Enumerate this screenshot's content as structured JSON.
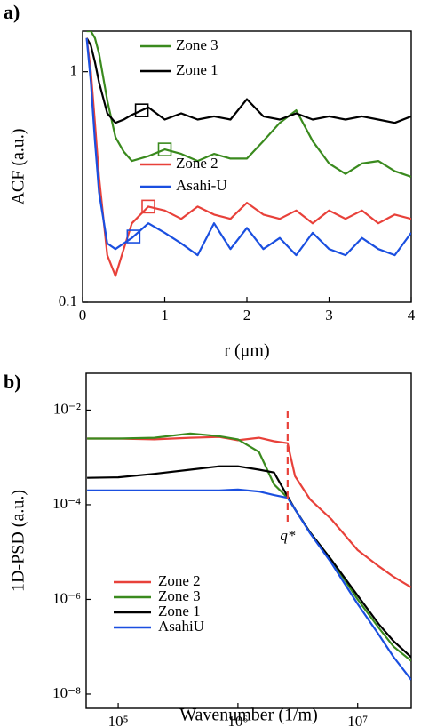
{
  "chart_data": [
    {
      "type": "line",
      "panel_label": "a)",
      "xlabel": "r (μm)",
      "ylabel": "ACF (a.u.)",
      "xlim": [
        0,
        4
      ],
      "xticks": [
        0,
        1,
        2,
        3,
        4
      ],
      "ylim": [
        0.1,
        1.5
      ],
      "yticks": [
        0.1,
        1
      ],
      "ylog": true,
      "x": [
        0.05,
        0.1,
        0.15,
        0.2,
        0.3,
        0.4,
        0.5,
        0.6,
        0.8,
        1.0,
        1.2,
        1.4,
        1.6,
        1.8,
        2.0,
        2.2,
        2.4,
        2.6,
        2.8,
        3.0,
        3.2,
        3.4,
        3.6,
        3.8,
        4.0
      ],
      "series": [
        {
          "name": "Zone 3",
          "color": "#3a8a1e",
          "marker_x": 1.0,
          "values": [
            1.5,
            1.5,
            1.4,
            1.2,
            0.75,
            0.52,
            0.45,
            0.41,
            0.43,
            0.46,
            0.44,
            0.41,
            0.44,
            0.42,
            0.42,
            0.5,
            0.6,
            0.68,
            0.5,
            0.4,
            0.36,
            0.4,
            0.41,
            0.37,
            0.35
          ]
        },
        {
          "name": "Zone 1",
          "color": "#000000",
          "marker_x": 0.72,
          "values": [
            1.4,
            1.3,
            1.1,
            0.9,
            0.66,
            0.6,
            0.62,
            0.65,
            0.7,
            0.62,
            0.66,
            0.62,
            0.64,
            0.62,
            0.76,
            0.64,
            0.62,
            0.66,
            0.62,
            0.64,
            0.62,
            0.64,
            0.62,
            0.6,
            0.64
          ]
        },
        {
          "name": "Zone 2",
          "color": "#e8413a",
          "marker_x": 0.8,
          "values": [
            1.4,
            1.0,
            0.6,
            0.35,
            0.16,
            0.13,
            0.17,
            0.22,
            0.26,
            0.25,
            0.23,
            0.26,
            0.24,
            0.23,
            0.27,
            0.24,
            0.23,
            0.25,
            0.22,
            0.25,
            0.23,
            0.25,
            0.22,
            0.24,
            0.23
          ]
        },
        {
          "name": "Asahi-U",
          "color": "#1a4fe0",
          "marker_x": 0.62,
          "values": [
            1.4,
            0.9,
            0.5,
            0.3,
            0.18,
            0.17,
            0.18,
            0.19,
            0.22,
            0.2,
            0.18,
            0.16,
            0.22,
            0.17,
            0.21,
            0.17,
            0.19,
            0.16,
            0.2,
            0.17,
            0.16,
            0.19,
            0.17,
            0.16,
            0.2
          ]
        }
      ]
    },
    {
      "type": "line",
      "panel_label": "b)",
      "xlabel": "Wavenumber (1/m)",
      "ylabel": "1D-PSD (a.u.)",
      "xlog": true,
      "ylog": true,
      "xlim": [
        54000,
        28000000
      ],
      "xticks": [
        {
          "value": 100000,
          "label": "10⁵"
        },
        {
          "value": 1000000,
          "label": "10⁶"
        },
        {
          "value": 10000000,
          "label": "10⁷"
        }
      ],
      "ylim": [
        5e-09,
        0.06
      ],
      "yticks": [
        {
          "value": 1e-08,
          "label": "10⁻⁸"
        },
        {
          "value": 1e-06,
          "label": "10⁻⁶"
        },
        {
          "value": 0.0001,
          "label": "10⁻⁴"
        },
        {
          "value": 0.01,
          "label": "10⁻²"
        }
      ],
      "vline": {
        "x": 2600000,
        "label": "q*",
        "color": "#e8413a"
      },
      "x": [
        55000,
        100000,
        200000,
        400000,
        700000,
        1000000,
        1500000,
        2000000,
        2600000,
        3000000,
        4000000,
        6000000,
        10000000,
        15000000,
        20000000,
        28000000
      ],
      "series": [
        {
          "name": "Zone 2",
          "color": "#e8413a",
          "values": [
            0.0025,
            0.0025,
            0.0024,
            0.0026,
            0.0027,
            0.0023,
            0.0026,
            0.0022,
            0.002,
            0.0004,
            0.00013,
            5e-05,
            1.1e-05,
            5e-06,
            3e-06,
            1.8e-06
          ]
        },
        {
          "name": "Zone 3",
          "color": "#3a8a1e",
          "values": [
            0.0025,
            0.0025,
            0.0026,
            0.0032,
            0.0028,
            0.0024,
            0.0013,
            0.00027,
            0.00014,
            8e-05,
            2.6e-05,
            7e-06,
            1e-06,
            2.5e-07,
            1e-07,
            5e-08
          ]
        },
        {
          "name": "Zone 1",
          "color": "#000000",
          "values": [
            0.00037,
            0.00038,
            0.00045,
            0.00055,
            0.00065,
            0.00065,
            0.00055,
            0.00048,
            0.00015,
            8e-05,
            2.6e-05,
            7e-06,
            1.2e-06,
            3e-07,
            1.3e-07,
            6e-08
          ]
        },
        {
          "name": "AsahiU",
          "color": "#1a4fe0",
          "values": [
            0.0002,
            0.0002,
            0.0002,
            0.0002,
            0.0002,
            0.00021,
            0.00019,
            0.00016,
            0.00014,
            8e-05,
            2.5e-05,
            6e-06,
            8e-07,
            1.8e-07,
            6e-08,
            2e-08
          ]
        }
      ]
    }
  ]
}
